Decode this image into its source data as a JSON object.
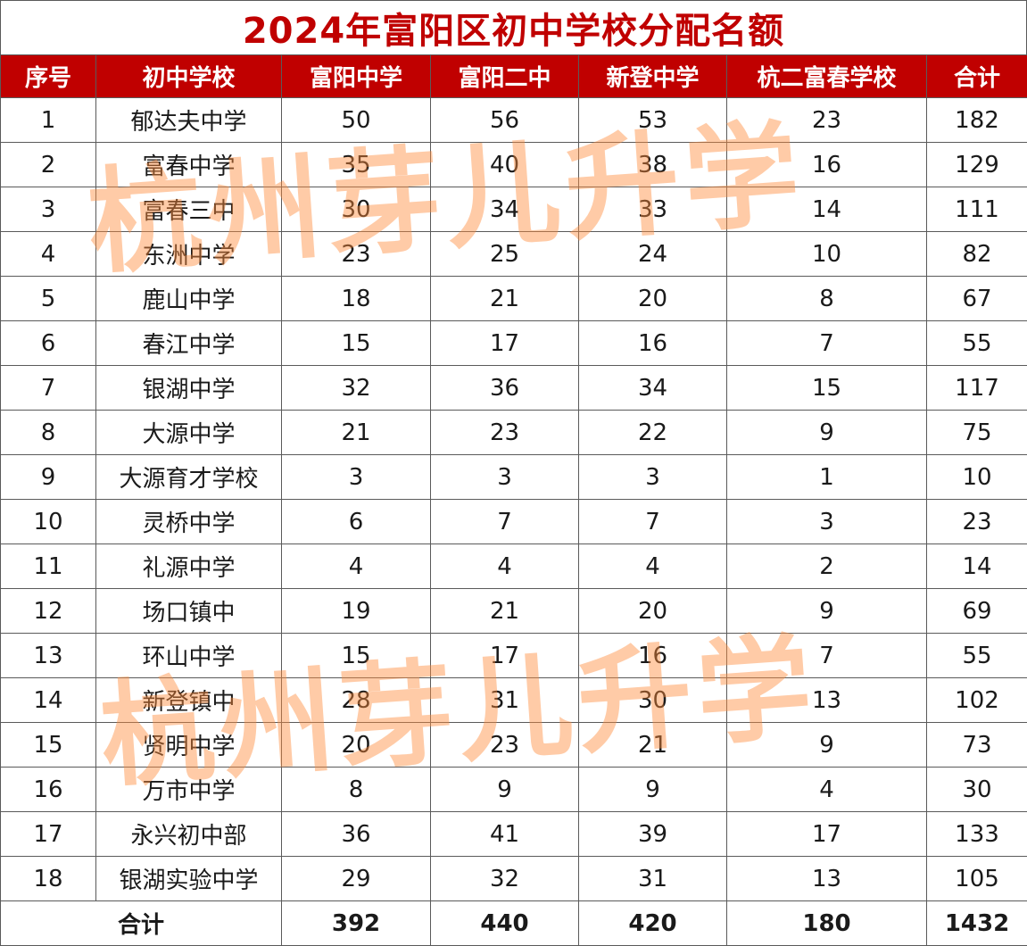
{
  "title": "2024年富阳区初中学校分配名额",
  "columns": [
    "序号",
    "初中学校",
    "富阳中学",
    "富阳二中",
    "新登中学",
    "杭二富春学校",
    "合计"
  ],
  "rows": [
    [
      "1",
      "郁达夫中学",
      "50",
      "56",
      "53",
      "23",
      "182"
    ],
    [
      "2",
      "富春中学",
      "35",
      "40",
      "38",
      "16",
      "129"
    ],
    [
      "3",
      "富春三中",
      "30",
      "34",
      "33",
      "14",
      "111"
    ],
    [
      "4",
      "东洲中学",
      "23",
      "25",
      "24",
      "10",
      "82"
    ],
    [
      "5",
      "鹿山中学",
      "18",
      "21",
      "20",
      "8",
      "67"
    ],
    [
      "6",
      "春江中学",
      "15",
      "17",
      "16",
      "7",
      "55"
    ],
    [
      "7",
      "银湖中学",
      "32",
      "36",
      "34",
      "15",
      "117"
    ],
    [
      "8",
      "大源中学",
      "21",
      "23",
      "22",
      "9",
      "75"
    ],
    [
      "9",
      "大源育才学校",
      "3",
      "3",
      "3",
      "1",
      "10"
    ],
    [
      "10",
      "灵桥中学",
      "6",
      "7",
      "7",
      "3",
      "23"
    ],
    [
      "11",
      "礼源中学",
      "4",
      "4",
      "4",
      "2",
      "14"
    ],
    [
      "12",
      "场口镇中",
      "19",
      "21",
      "20",
      "9",
      "69"
    ],
    [
      "13",
      "环山中学",
      "15",
      "17",
      "16",
      "7",
      "55"
    ],
    [
      "14",
      "新登镇中",
      "28",
      "31",
      "30",
      "13",
      "102"
    ],
    [
      "15",
      "贤明中学",
      "20",
      "23",
      "21",
      "9",
      "73"
    ],
    [
      "16",
      "万市中学",
      "8",
      "9",
      "9",
      "4",
      "30"
    ],
    [
      "17",
      "永兴初中部",
      "36",
      "41",
      "39",
      "17",
      "133"
    ],
    [
      "18",
      "银湖实验中学",
      "29",
      "32",
      "31",
      "13",
      "105"
    ]
  ],
  "total": {
    "label": "合计",
    "values": [
      "392",
      "440",
      "420",
      "180",
      "1432"
    ]
  },
  "watermark": [
    "杭州芽儿升学",
    "杭州芽儿升学"
  ],
  "colors": {
    "header_bg": "#c00000",
    "title_text": "#c00000",
    "watermark": "#ff8c3c"
  }
}
